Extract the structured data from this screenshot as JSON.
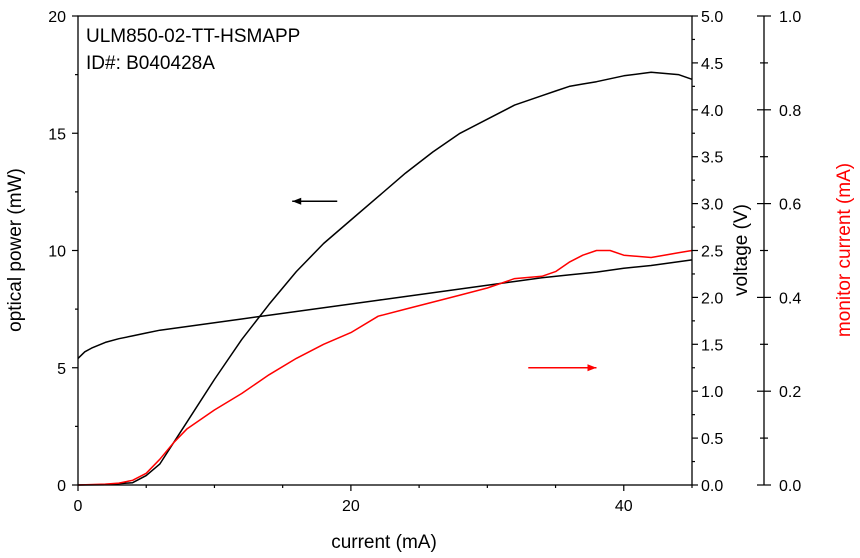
{
  "chart_data": {
    "type": "line",
    "annotation_lines": [
      "ULM850-02-TT-HSMAPP",
      "ID#: B040428A"
    ],
    "xlabel": "current (mA)",
    "xlim": [
      0,
      45
    ],
    "xticks": [
      0,
      20,
      40
    ],
    "axes": {
      "optical_power": {
        "label": "optical power (mW)",
        "lim": [
          0,
          20
        ],
        "ticks": [
          0,
          5,
          10,
          15,
          20
        ],
        "color": "#000000"
      },
      "voltage": {
        "label": "voltage (V)",
        "lim": [
          0,
          5
        ],
        "ticks": [
          "0.0",
          "0.5",
          "1.0",
          "1.5",
          "2.0",
          "2.5",
          "3.0",
          "3.5",
          "4.0",
          "4.5",
          "5.0"
        ],
        "color": "#000000"
      },
      "monitor_current": {
        "label": "monitor current   (mA)",
        "lim": [
          0,
          1
        ],
        "ticks": [
          "0.0",
          "0.2",
          "0.4",
          "0.6",
          "0.8",
          "1.0"
        ],
        "color": "#ff0000"
      }
    },
    "series": [
      {
        "axis": "optical_power",
        "color": "#000000",
        "x": [
          0,
          2,
          4,
          5,
          6,
          7,
          8,
          10,
          12,
          14,
          16,
          18,
          20,
          22,
          24,
          26,
          28,
          30,
          32,
          34,
          35,
          36,
          37,
          38,
          40,
          42,
          44,
          45
        ],
        "y": [
          0,
          0.01,
          0.1,
          0.4,
          0.9,
          1.8,
          2.7,
          4.5,
          6.2,
          7.7,
          9.1,
          10.3,
          11.3,
          12.3,
          13.3,
          14.2,
          15.0,
          15.6,
          16.2,
          16.6,
          16.8,
          17.0,
          17.1,
          17.2,
          17.45,
          17.6,
          17.5,
          17.3
        ]
      },
      {
        "axis": "voltage",
        "color": "#000000",
        "x": [
          0,
          0.5,
          1,
          2,
          3,
          4,
          5,
          6,
          8,
          10,
          12,
          14,
          16,
          18,
          20,
          22,
          24,
          26,
          28,
          30,
          32,
          34,
          36,
          38,
          40,
          42,
          44,
          45
        ],
        "y": [
          1.35,
          1.42,
          1.46,
          1.52,
          1.56,
          1.59,
          1.62,
          1.65,
          1.69,
          1.73,
          1.77,
          1.81,
          1.85,
          1.89,
          1.93,
          1.97,
          2.01,
          2.05,
          2.09,
          2.13,
          2.17,
          2.21,
          2.24,
          2.27,
          2.31,
          2.34,
          2.38,
          2.4
        ]
      },
      {
        "axis": "monitor_current",
        "color": "#ff0000",
        "x": [
          0,
          2,
          3,
          4,
          5,
          6,
          7,
          8,
          10,
          12,
          14,
          16,
          18,
          20,
          22,
          24,
          26,
          28,
          30,
          32,
          34,
          35,
          36,
          37,
          38,
          39,
          40,
          42,
          44,
          45
        ],
        "y": [
          0,
          0.002,
          0.004,
          0.01,
          0.025,
          0.055,
          0.09,
          0.12,
          0.16,
          0.195,
          0.235,
          0.27,
          0.3,
          0.325,
          0.36,
          0.375,
          0.39,
          0.405,
          0.42,
          0.44,
          0.445,
          0.455,
          0.475,
          0.49,
          0.5,
          0.5,
          0.49,
          0.485,
          0.495,
          0.5
        ]
      }
    ],
    "arrows": [
      {
        "direction": "left",
        "color": "#000000",
        "x": [
          19,
          15.7
        ],
        "axis": "optical_power",
        "y": 12.1
      },
      {
        "direction": "right",
        "color": "#ff0000",
        "x": [
          33,
          38
        ],
        "axis": "optical_power",
        "y": 5
      }
    ]
  }
}
